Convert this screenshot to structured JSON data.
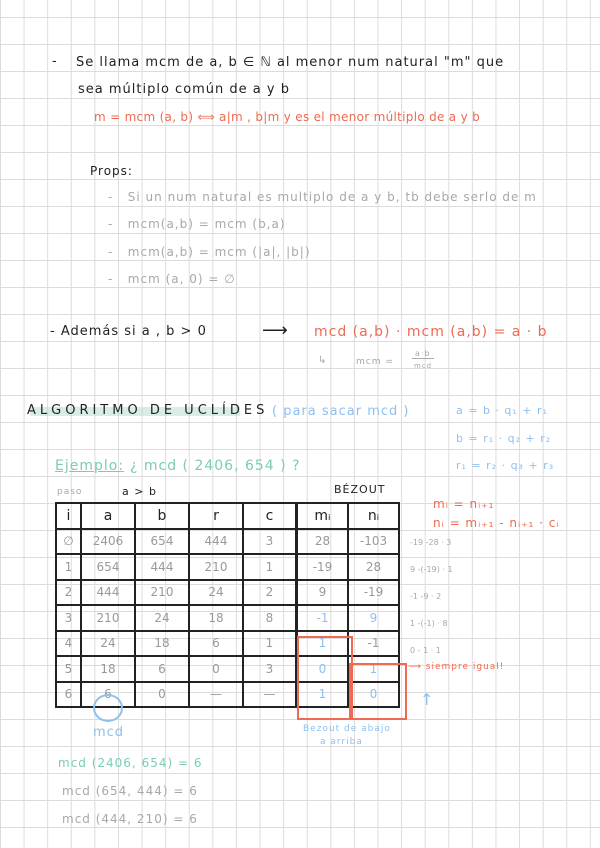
{
  "definition": {
    "line1": "Se llama mcm de a, b ∈ ℕ al menor num natural \"m\" que",
    "line2": "sea múltiplo común de a y b",
    "formula": "m = mcm (a, b)  ⟺  a|m ,  b|m  y es el menor múltiplo de a y b"
  },
  "props": {
    "title": "Props:",
    "items": [
      "Si un num natural es multiplo de a y b, tb debe serlo de m",
      "mcm(a,b) = mcm (b,a)",
      "mcm(a,b) = mcm (|a|, |b|)",
      "mcm (a, 0) = ∅"
    ]
  },
  "ademas": {
    "text": "- Además si a , b > 0",
    "arrow": "⟶",
    "formula": "mcd (a,b) · mcm (a,b) = a · b",
    "sub_arrow": "↳",
    "sub_lhs": "mcm =",
    "sub_num": "a·b",
    "sub_den": "mcd"
  },
  "euclides": {
    "title": "ALGORITMO DE UCLÍDES",
    "subtitle": "( para sacar mcd )",
    "equations": [
      "a = b · q₁ + r₁",
      "b = r₁ · q₂ + r₂",
      "r₁ = r₂ · q₃ + r₃"
    ]
  },
  "example": {
    "label": "Ejemplo:",
    "question": "¿ mcd ( 2406, 654 ) ?",
    "paso": "paso",
    "agb": "a > b",
    "bezout": "BÉZOUT",
    "headers": [
      "i",
      "a",
      "b",
      "r",
      "c",
      "mᵢ",
      "nᵢ"
    ],
    "rows": [
      [
        "∅",
        "2406",
        "654",
        "444",
        "3",
        "28",
        "-103"
      ],
      [
        "1",
        "654",
        "444",
        "210",
        "1",
        "-19",
        "28"
      ],
      [
        "2",
        "444",
        "210",
        "24",
        "2",
        "9",
        "-19"
      ],
      [
        "3",
        "210",
        "24",
        "18",
        "8",
        "-1",
        "9"
      ],
      [
        "4",
        "24",
        "18",
        "6",
        "1",
        "1",
        "-1"
      ],
      [
        "5",
        "18",
        "6",
        "0",
        "3",
        "0",
        "1"
      ],
      [
        "6",
        "6",
        "0",
        "—",
        "—",
        "1",
        "0"
      ]
    ],
    "side_calcs": [
      "-19 -28 · 3",
      "9 -(-19) · 1",
      "-1 -9 · 2",
      "1 -(-1) · 8",
      "0 - 1 · 1"
    ],
    "rule1": "mᵢ = nᵢ₊₁",
    "rule2": "nᵢ = mᵢ₊₁ - nᵢ₊₁ · cᵢ",
    "siempre": "⟶ siempre igual!",
    "mcd_label": "mcd",
    "bezout_note1": "Bezout de abajo",
    "bezout_note2": "a arriba",
    "results": [
      "mcd (2406, 654) = 6",
      "mcd (654, 444) = 6",
      "mcd (444, 210) = 6"
    ]
  },
  "colors": {
    "red": "#ee6a52",
    "blue": "#8ebfef",
    "teal": "#7ccbb8",
    "gray": "#a8a8a8"
  }
}
